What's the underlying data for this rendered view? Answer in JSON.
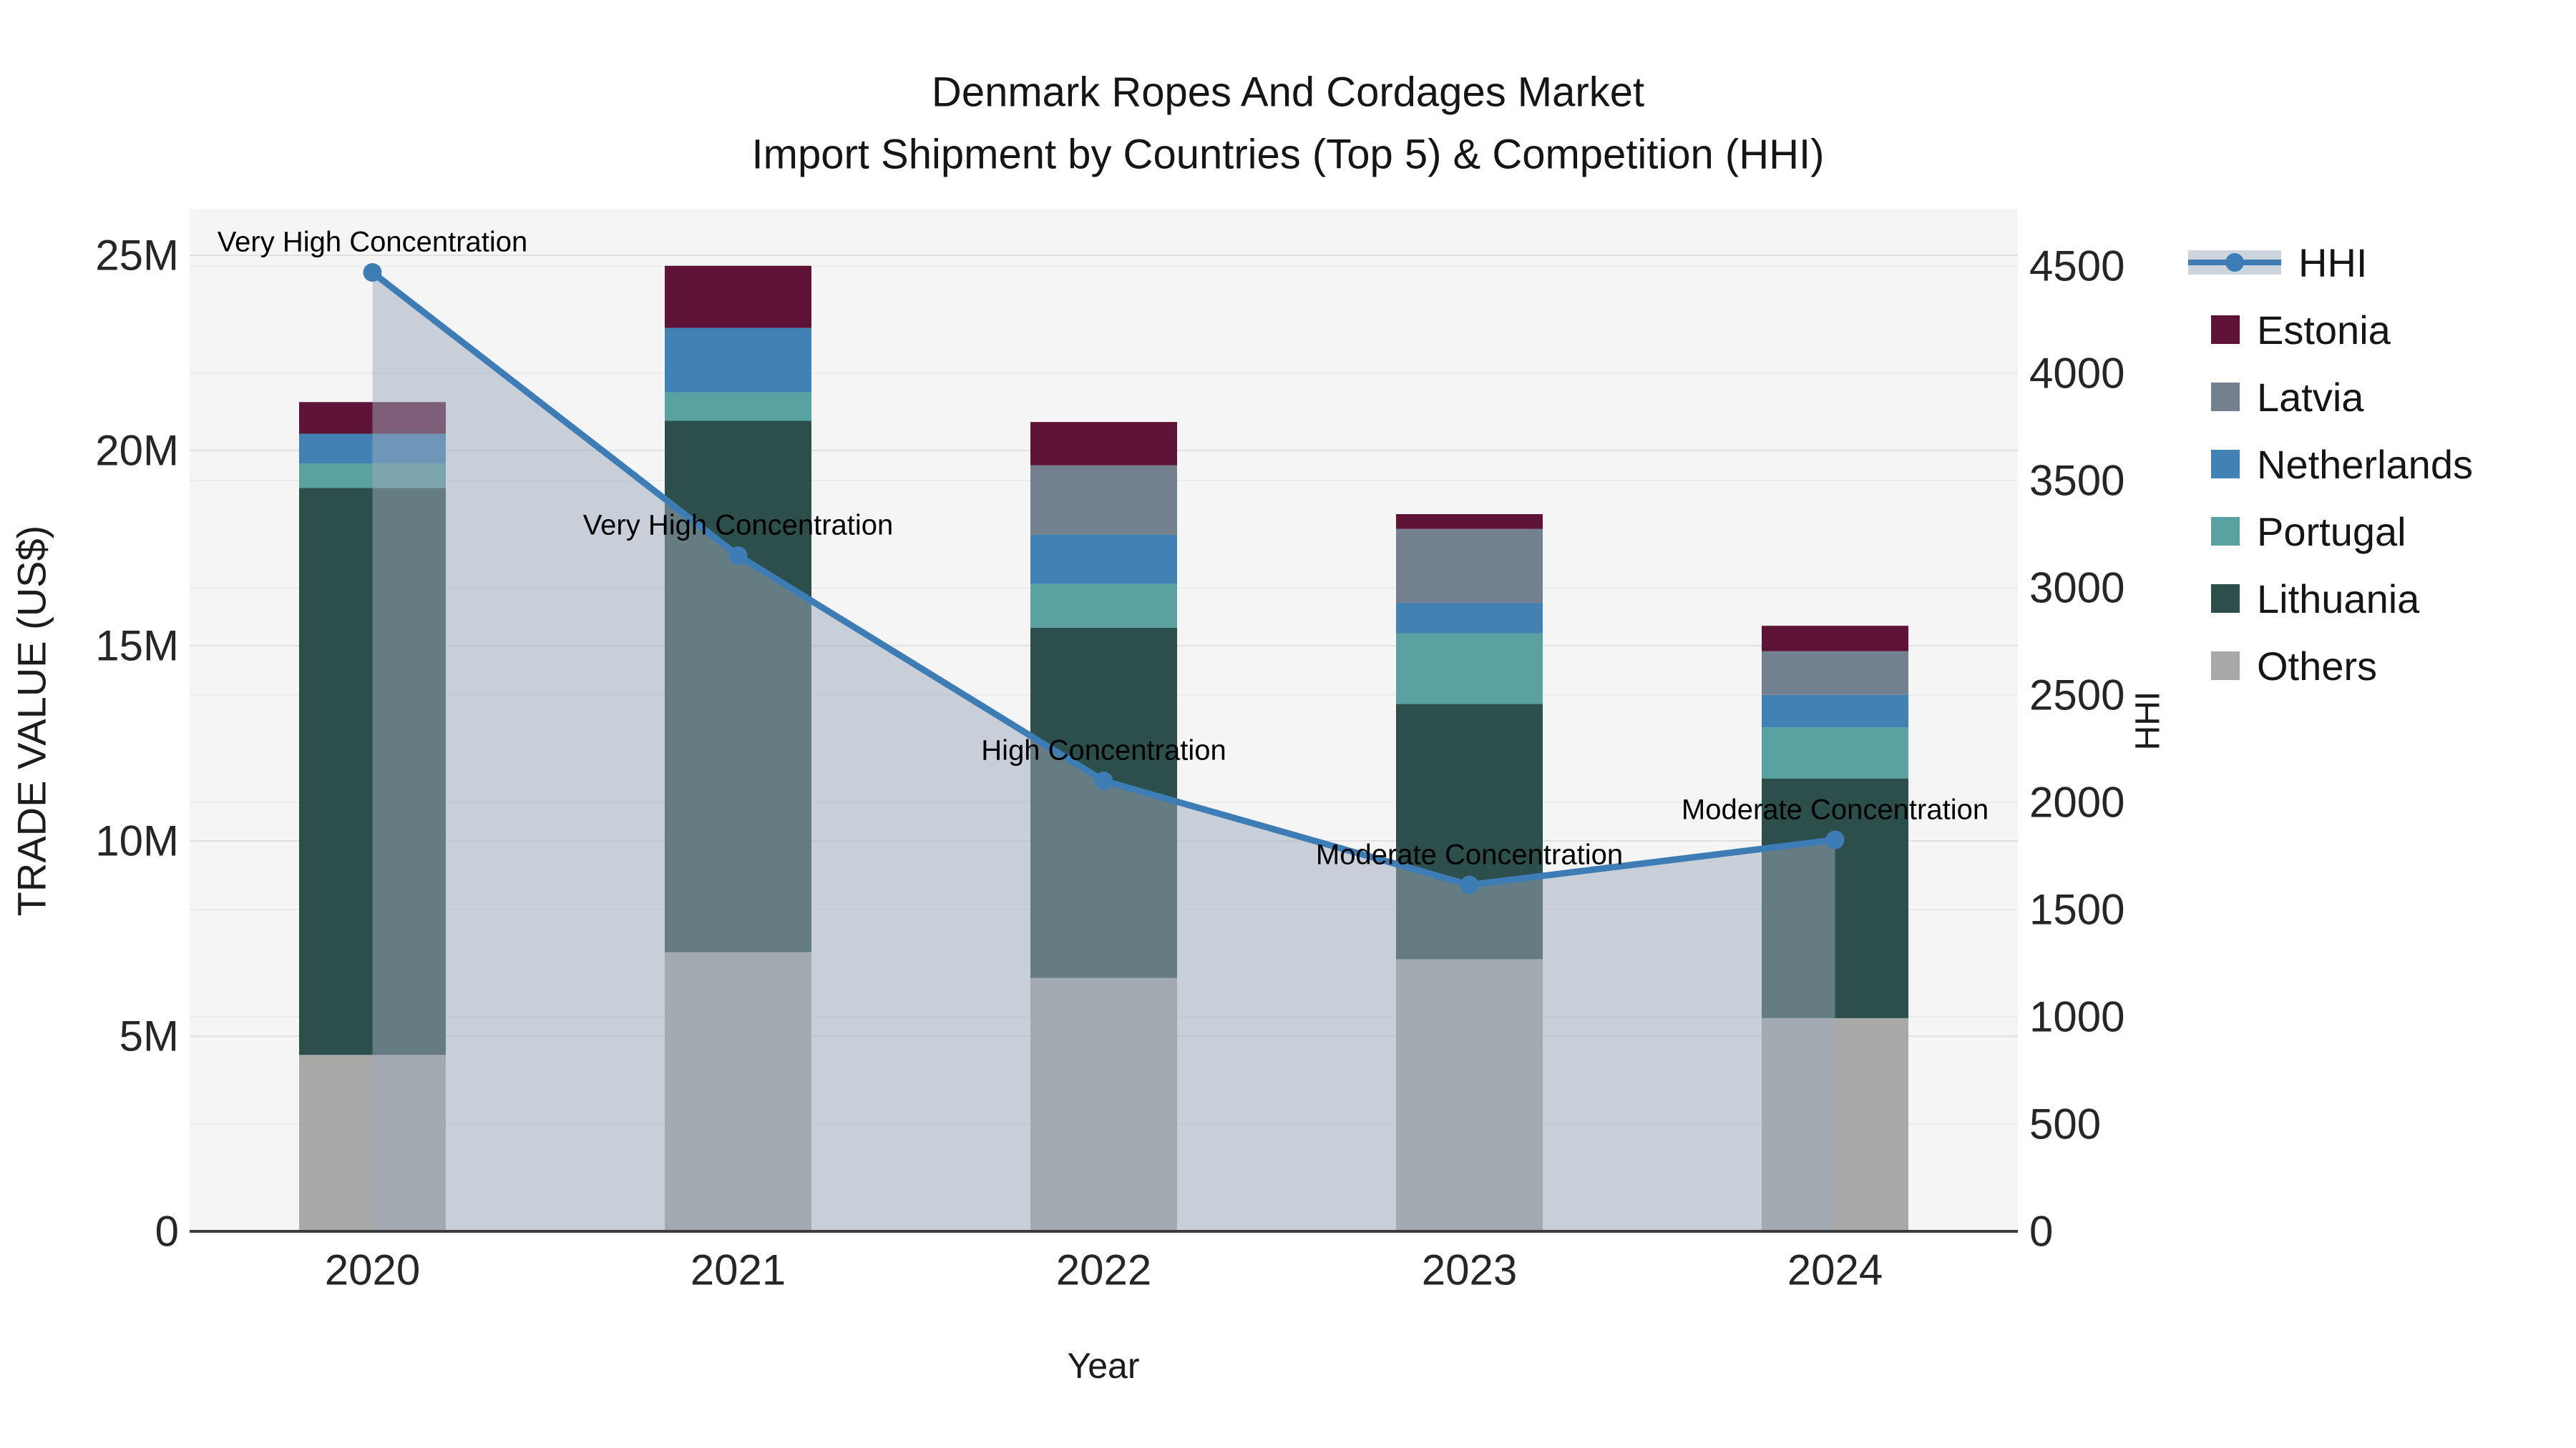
{
  "title": {
    "line1": "Denmark Ropes And Cordages Market",
    "line2": "Import Shipment by Countries (Top 5) & Competition (HHI)"
  },
  "axes": {
    "x": {
      "label": "Year",
      "categories": [
        "2020",
        "2021",
        "2022",
        "2023",
        "2024"
      ]
    },
    "left": {
      "label": "TRADE VALUE (US$)",
      "ticks": [
        {
          "value": 0,
          "label": "0"
        },
        {
          "value": 5,
          "label": "5M"
        },
        {
          "value": 10,
          "label": "10M"
        },
        {
          "value": 15,
          "label": "15M"
        },
        {
          "value": 20,
          "label": "20M"
        },
        {
          "value": 25,
          "label": "25M"
        }
      ]
    },
    "right": {
      "label": "HHI",
      "ticks": [
        {
          "value": 0,
          "label": "0"
        },
        {
          "value": 500,
          "label": "500"
        },
        {
          "value": 1000,
          "label": "1000"
        },
        {
          "value": 1500,
          "label": "1500"
        },
        {
          "value": 2000,
          "label": "2000"
        },
        {
          "value": 2500,
          "label": "2500"
        },
        {
          "value": 3000,
          "label": "3000"
        },
        {
          "value": 3500,
          "label": "3500"
        },
        {
          "value": 4000,
          "label": "4000"
        },
        {
          "value": 4500,
          "label": "4500"
        }
      ]
    }
  },
  "legend": {
    "items": [
      {
        "label": "HHI",
        "swatch": "line",
        "color": "#3e7cb6"
      },
      {
        "label": "Estonia",
        "swatch": "square",
        "color": "#5f1437"
      },
      {
        "label": "Latvia",
        "swatch": "square",
        "color": "#72808f"
      },
      {
        "label": "Netherlands",
        "swatch": "square",
        "color": "#4181b4"
      },
      {
        "label": "Portugal",
        "swatch": "square",
        "color": "#5aa1a1"
      },
      {
        "label": "Lithuania",
        "swatch": "square",
        "color": "#2d4f4b"
      },
      {
        "label": "Others",
        "swatch": "square",
        "color": "#a8a8a6"
      }
    ]
  },
  "chart_data": {
    "type": "bar+line",
    "subtype": "stacked-bars-with-secondary-axis-line",
    "categories": [
      "2020",
      "2021",
      "2022",
      "2023",
      "2024"
    ],
    "bar_axis": "left",
    "bar_unit": "million US$ trade value",
    "left_axis_range": [
      0,
      25
    ],
    "right_axis_range": [
      0,
      4500
    ],
    "grid": true,
    "legend_position": "right-outside",
    "series": [
      {
        "name": "Others",
        "color": "#a8a8a6",
        "values": [
          4.52,
          7.15,
          6.49,
          6.97,
          5.46
        ]
      },
      {
        "name": "Lithuania",
        "color": "#2d4f4b",
        "values": [
          14.52,
          13.61,
          8.97,
          6.54,
          6.14
        ]
      },
      {
        "name": "Portugal",
        "color": "#5aa1a1",
        "values": [
          0.63,
          0.73,
          1.12,
          1.81,
          1.31
        ]
      },
      {
        "name": "Netherlands",
        "color": "#4181b4",
        "values": [
          0.76,
          1.65,
          1.26,
          0.77,
          0.83
        ]
      },
      {
        "name": "Latvia",
        "color": "#72808f",
        "values": [
          0.0,
          0.0,
          1.78,
          1.9,
          1.12
        ]
      },
      {
        "name": "Estonia",
        "color": "#5f1437",
        "values": [
          0.81,
          1.59,
          1.11,
          0.38,
          0.65
        ]
      }
    ],
    "bar_totals": [
      21.24,
      24.73,
      20.73,
      18.37,
      15.51
    ],
    "line_series": {
      "name": "HHI",
      "axis": "right",
      "color": "#3e7cb6",
      "area_fill_color": "rgba(158,170,188,0.5)",
      "values": [
        4470,
        3150,
        2100,
        1615,
        1825
      ]
    },
    "annotations": [
      {
        "category": "2020",
        "text": "Very High Concentration"
      },
      {
        "category": "2021",
        "text": "Very High Concentration"
      },
      {
        "category": "2022",
        "text": "High Concentration"
      },
      {
        "category": "2023",
        "text": "Moderate Concentration"
      },
      {
        "category": "2024",
        "text": "Moderate Concentration"
      }
    ],
    "colors": {
      "plot_background": "#f5f5f5",
      "figure_background": "#ffffff",
      "grid_major_left": "#e0e0e0",
      "grid_major_right": "#ececec",
      "axis_line": "#3c3c3c"
    }
  }
}
